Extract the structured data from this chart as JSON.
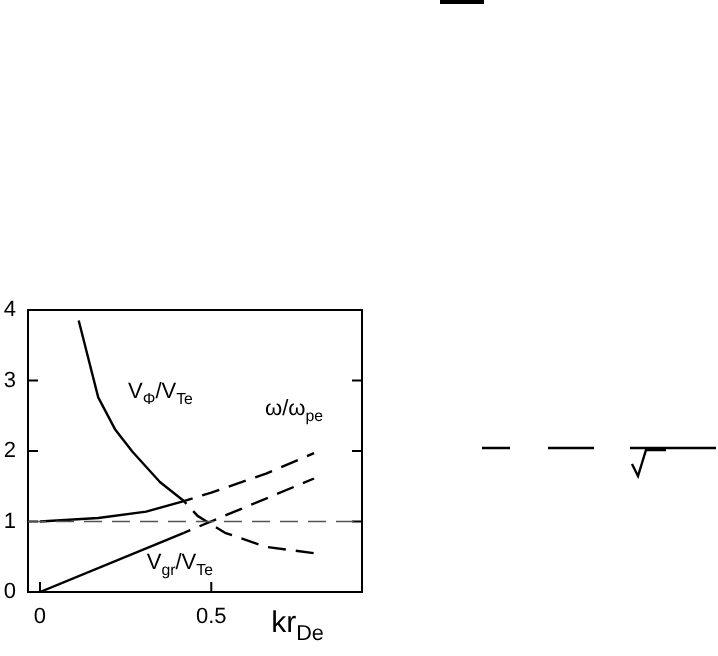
{
  "chart_data": {
    "type": "line",
    "xlabel": "kr$_{De}$",
    "xlim": [
      -0.035,
      0.94
    ],
    "xticks": [
      0,
      0.5
    ],
    "ylim": [
      0,
      4
    ],
    "yticks": [
      0,
      1,
      2,
      3,
      4
    ],
    "grid": false,
    "legend": false,
    "marker": "none",
    "series": [
      {
        "name": "V$_{Φ}$/V$_{Te}$",
        "color": "#000000",
        "line_style": "solid",
        "x": [
          0.113,
          0.17,
          0.22,
          0.27,
          0.35,
          0.42
        ],
        "values": [
          3.85,
          2.76,
          2.3,
          1.99,
          1.56,
          1.29
        ]
      },
      {
        "color": "#000000",
        "line_style": "dashed",
        "x": [
          0.42,
          0.46,
          0.54,
          0.66,
          0.8
        ],
        "values": [
          1.29,
          1.08,
          0.84,
          0.64,
          0.55
        ]
      },
      {
        "color": "#000000",
        "line_style": "solid",
        "x": [
          0,
          0.17,
          0.31,
          0.42
        ],
        "values": [
          1,
          1.05,
          1.14,
          1.29
        ]
      },
      {
        "name": "ω/ω$_{pe}$",
        "color": "#000000",
        "line_style": "dashed",
        "x": [
          0.42,
          0.5,
          0.66,
          0.8
        ],
        "values": [
          1.29,
          1.41,
          1.68,
          1.97
        ]
      },
      {
        "name": "V$_{gr}$/V$_{Te}$",
        "color": "#000000",
        "line_style": "solid",
        "x": [
          0,
          0.42
        ],
        "values": [
          0,
          0.84
        ]
      },
      {
        "color": "#000000",
        "line_style": "dashed",
        "x": [
          0.42,
          0.8
        ],
        "values": [
          0.84,
          1.61
        ]
      }
    ],
    "ref_lines": [
      {
        "axis": "y",
        "value": 1,
        "color": "#555555",
        "line_style": "dashed"
      }
    ]
  }
}
